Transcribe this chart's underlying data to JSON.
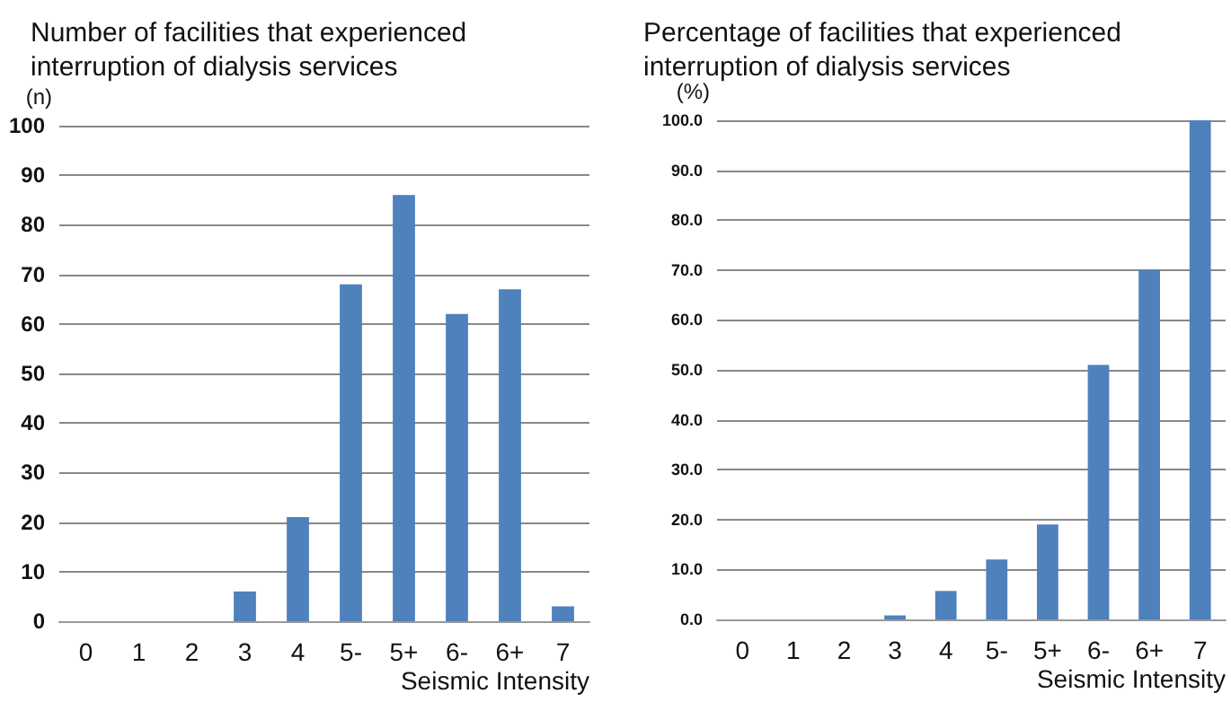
{
  "chart_data": [
    {
      "type": "bar",
      "title": "Number of facilities that experienced interruption of dialysis services",
      "ylabel": "(n)",
      "xlabel": "Seismic Intensity",
      "categories": [
        "0",
        "1",
        "2",
        "3",
        "4",
        "5-",
        "5+",
        "6-",
        "6+",
        "7"
      ],
      "values": [
        0,
        0,
        0,
        6,
        21,
        68,
        86,
        62,
        67,
        3
      ],
      "color": "#4f81bd",
      "ylim": [
        0,
        100
      ],
      "yticks": [
        0,
        10,
        20,
        30,
        40,
        50,
        60,
        70,
        80,
        90,
        100
      ],
      "grid": "y"
    },
    {
      "type": "bar",
      "title": "Percentage of facilities that experienced interruption of dialysis services",
      "ylabel": "(%)",
      "xlabel": "Seismic Intensity",
      "categories": [
        "0",
        "1",
        "2",
        "3",
        "4",
        "5-",
        "5+",
        "6-",
        "6+",
        "7"
      ],
      "values": [
        0,
        0,
        0,
        0.8,
        5.7,
        12,
        19,
        51,
        70,
        100
      ],
      "color": "#4f81bd",
      "ylim": [
        0,
        100
      ],
      "yticks": [
        {
          "value": 0,
          "label": "0.0"
        },
        {
          "value": 10,
          "label": "10.0"
        },
        {
          "value": 20,
          "label": "20.0"
        },
        {
          "value": 30,
          "label": "30.0"
        },
        {
          "value": 40,
          "label": "40.0"
        },
        {
          "value": 50,
          "label": "50.0"
        },
        {
          "value": 60,
          "label": "60.0"
        },
        {
          "value": 70,
          "label": "70.0"
        },
        {
          "value": 80,
          "label": "80.0"
        },
        {
          "value": 90,
          "label": "90.0"
        },
        {
          "value": 100,
          "label": "100.0"
        }
      ],
      "grid": "y"
    }
  ]
}
